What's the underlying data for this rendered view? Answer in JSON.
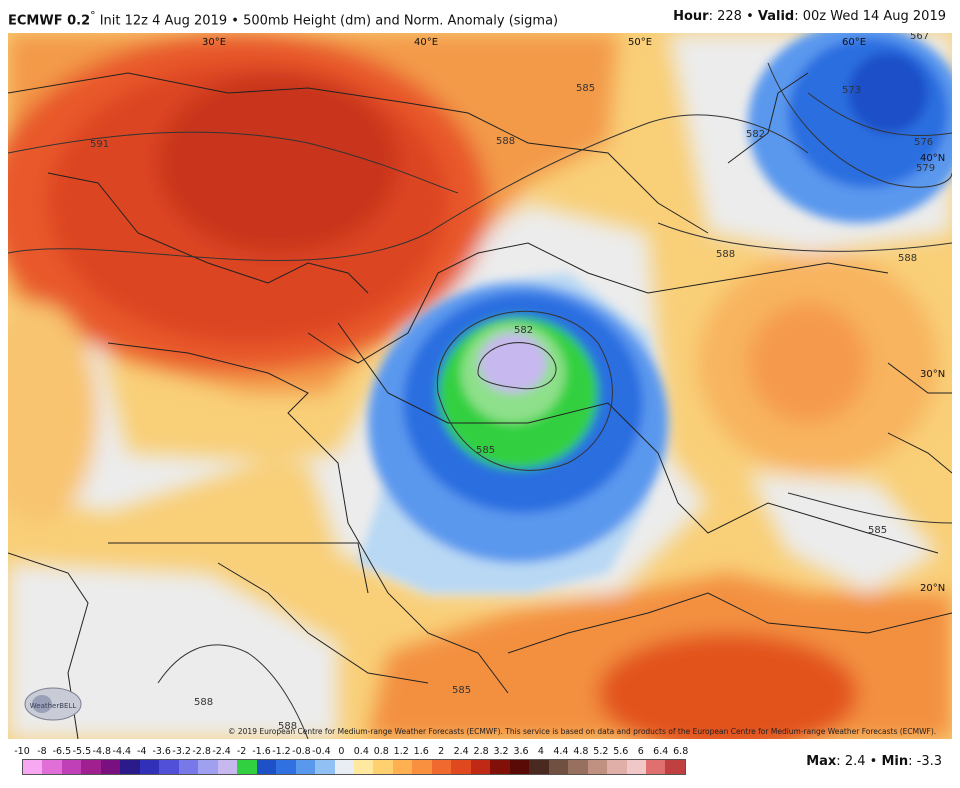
{
  "header": {
    "model": "ECMWF 0.2",
    "degree": "°",
    "init": "Init 12z 4 Aug 2019",
    "sep": "•",
    "product": "500mb Height (dm) and Norm. Anomaly (sigma)",
    "hour_label": "Hour",
    "hour_value": "228",
    "valid_label": "Valid",
    "valid_value": "00z Wed 14 Aug 2019"
  },
  "map": {
    "longitudes": [
      "30°E",
      "40°E",
      "50°E",
      "60°E"
    ],
    "latitudes": [
      "40°N",
      "30°N",
      "20°N"
    ],
    "contour_labels": [
      "591",
      "588",
      "585",
      "582",
      "585",
      "582",
      "588",
      "585",
      "576",
      "573",
      "567",
      "579",
      "585",
      "588",
      "588",
      "588"
    ],
    "logo_text": "WeatherBELL"
  },
  "credit": "© 2019 European Centre for Medium-range Weather Forecasts (ECMWF). This service is based on data and products of the European Centre for Medium-range Weather Forecasts (ECMWF).",
  "colorbar": {
    "ticks": [
      "-10",
      "-8",
      "-6.5",
      "-5.5",
      "-4.8",
      "-4.4",
      "-4",
      "-3.6",
      "-3.2",
      "-2.8",
      "-2.4",
      "-2",
      "-1.6",
      "-1.2",
      "-0.8",
      "-0.4",
      "0",
      "0.4",
      "0.8",
      "1.2",
      "1.6",
      "2",
      "2.4",
      "2.8",
      "3.2",
      "3.6",
      "4",
      "4.4",
      "4.8",
      "5.2",
      "5.6",
      "6",
      "6.4",
      "6.8"
    ],
    "colors": [
      "#f7a8f0",
      "#e070d8",
      "#c040b8",
      "#a02090",
      "#7a1080",
      "#2a1a8a",
      "#3030b8",
      "#5050d8",
      "#7878e8",
      "#a0a0f0",
      "#c8b8f0",
      "#30d040",
      "#1e50c8",
      "#3070e0",
      "#5a98ee",
      "#90c0f4",
      "#e8eef4",
      "#ffe8a0",
      "#ffd070",
      "#ffb050",
      "#f89040",
      "#f06a30",
      "#e04820",
      "#c02a14",
      "#801008",
      "#5a0a06",
      "#4a2a20",
      "#705040",
      "#987060",
      "#c09080",
      "#e0b0a8",
      "#f0c8c8",
      "#e07070",
      "#c04040"
    ],
    "max_label": "Max",
    "max_value": "2.4",
    "min_label": "Min",
    "min_value": "-3.3"
  }
}
